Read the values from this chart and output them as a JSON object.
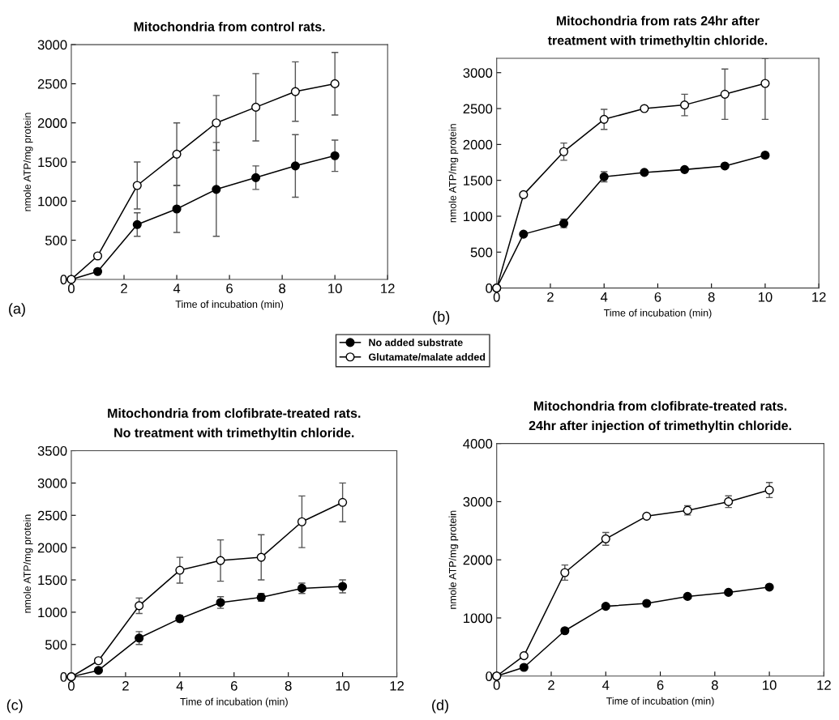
{
  "chart_data": [
    {
      "type": "line",
      "title": "Mitochondria from control rats.",
      "xlabel": "Time of incubation (min)",
      "ylabel": "nmole ATP/mg protein",
      "annotations": [
        "(a)"
      ],
      "x": [
        0,
        1,
        2.5,
        4,
        5.5,
        7,
        8.5,
        10
      ],
      "xlim": [
        0,
        12
      ],
      "xticks": [
        0,
        2,
        4,
        6,
        8,
        10,
        12
      ],
      "ylim": [
        0,
        3000
      ],
      "yticks": [
        0,
        500,
        1000,
        1500,
        2000,
        2500,
        3000
      ],
      "marker": "circle",
      "grid": false,
      "legend": "bottom right",
      "series": [
        {
          "name": "No added substrate",
          "color": "#000000",
          "values": [
            0,
            100,
            700,
            900,
            1150,
            1300,
            1450,
            1580
          ],
          "errors": [
            null,
            null,
            150,
            300,
            600,
            150,
            400,
            200
          ]
        },
        {
          "name": "Glutamate/malate added",
          "color": "#ffffff",
          "values": [
            0,
            300,
            1200,
            1600,
            2000,
            2200,
            2400,
            2500
          ],
          "errors": [
            null,
            null,
            300,
            400,
            350,
            430,
            380,
            400
          ]
        }
      ]
    },
    {
      "type": "line",
      "title": "Mitochondria from rats 24hr after\ntreatment with trimethyltin chloride.",
      "xlabel": "Time of incubation (min)",
      "ylabel": "nmole ATP/mg protein",
      "annotations": [
        "(b)"
      ],
      "x": [
        0,
        1,
        2.5,
        4,
        5.5,
        7,
        8.5,
        10
      ],
      "xlim": [
        0,
        12
      ],
      "xticks": [
        0,
        2,
        4,
        6,
        8,
        10,
        12
      ],
      "ylim": [
        0,
        3200
      ],
      "yticks": [
        0,
        500,
        1000,
        1500,
        2000,
        2500,
        3000
      ],
      "marker": "circle",
      "grid": false,
      "series": [
        {
          "color": "#000000",
          "values": [
            0,
            750,
            900,
            1550,
            1610,
            1650,
            1700,
            1850
          ],
          "errors": [
            null,
            null,
            60,
            70,
            null,
            null,
            null,
            40
          ]
        },
        {
          "color": "#ffffff",
          "values": [
            0,
            1300,
            1900,
            2350,
            2500,
            2550,
            2700,
            2850
          ],
          "errors": [
            null,
            null,
            120,
            140,
            null,
            150,
            350,
            [
              2350,
              3200
            ]
          ]
        }
      ]
    },
    {
      "type": "line",
      "title": "Mitochondria from clofibrate-treated rats.\nNo treatment with trimethyltin chloride.",
      "xlabel": "Time of incubation (min)",
      "ylabel": "nmole ATP/mg protein",
      "annotations": [
        "(c)"
      ],
      "x": [
        0,
        1,
        2.5,
        4,
        5.5,
        7,
        8.5,
        10
      ],
      "xlim": [
        0,
        12
      ],
      "xticks": [
        0,
        2,
        4,
        6,
        8,
        10,
        12
      ],
      "ylim": [
        0,
        3500
      ],
      "yticks": [
        0,
        500,
        1000,
        1500,
        2000,
        2500,
        3000,
        3500
      ],
      "marker": "circle",
      "grid": false,
      "series": [
        {
          "color": "#000000",
          "values": [
            0,
            100,
            600,
            900,
            1150,
            1230,
            1370,
            1400
          ],
          "errors": [
            null,
            null,
            100,
            50,
            90,
            60,
            80,
            100
          ]
        },
        {
          "color": "#ffffff",
          "values": [
            0,
            250,
            1100,
            1650,
            1800,
            1850,
            2400,
            2700
          ],
          "errors": [
            null,
            null,
            120,
            200,
            320,
            350,
            400,
            300
          ]
        }
      ]
    },
    {
      "type": "line",
      "title": "Mitochondria from clofibrate-treated rats.\n24hr after injection of trimethyltin chloride.",
      "xlabel": "Time of incubation (min)",
      "ylabel": "nmole ATP/mg protein",
      "annotations": [
        "(d)"
      ],
      "x": [
        0,
        1,
        2.5,
        4,
        5.5,
        7,
        8.5,
        10
      ],
      "xlim": [
        0,
        12
      ],
      "xticks": [
        0,
        2,
        4,
        6,
        8,
        10,
        12
      ],
      "ylim": [
        0,
        4000
      ],
      "yticks": [
        0,
        1000,
        2000,
        3000,
        4000
      ],
      "marker": "circle",
      "grid": false,
      "series": [
        {
          "color": "#000000",
          "values": [
            0,
            150,
            780,
            1200,
            1250,
            1370,
            1440,
            1530
          ]
        },
        {
          "color": "#ffffff",
          "values": [
            0,
            350,
            1780,
            2360,
            2750,
            2850,
            3000,
            3200
          ],
          "errors": [
            null,
            null,
            130,
            110,
            null,
            80,
            100,
            130
          ]
        }
      ]
    }
  ]
}
